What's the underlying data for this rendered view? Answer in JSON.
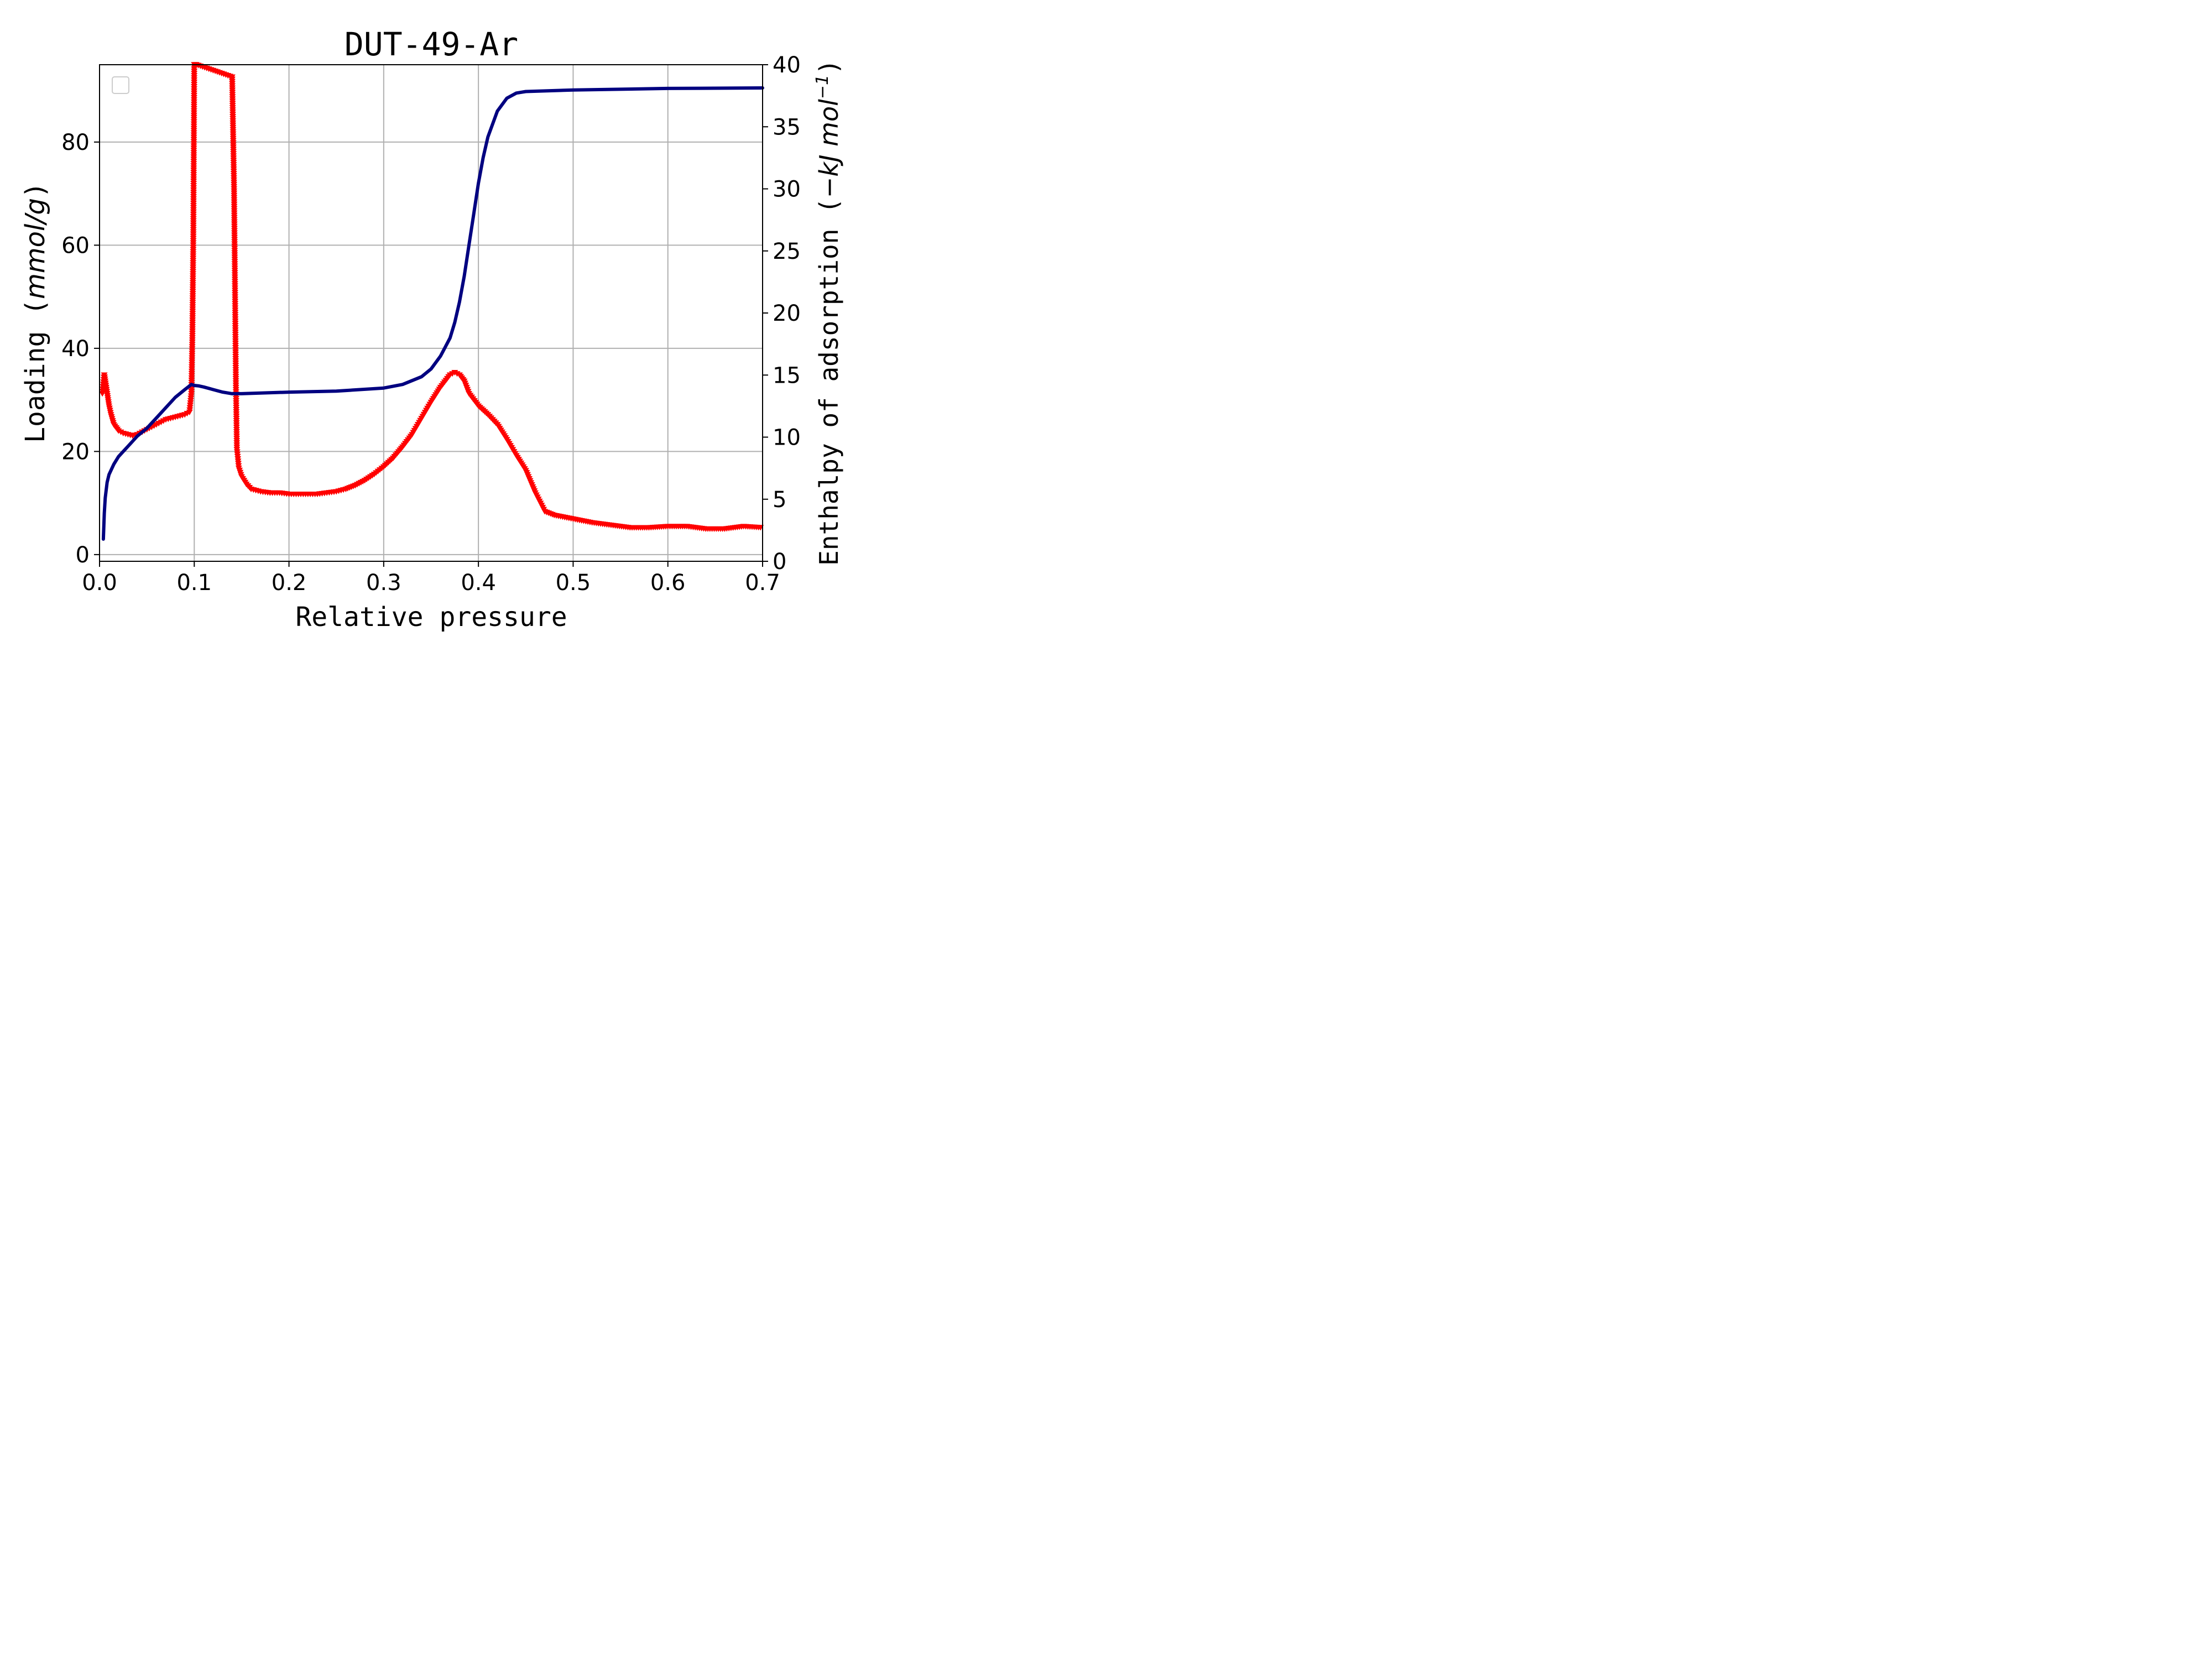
{
  "chart_data": {
    "type": "line",
    "title": "DUT-49-Ar",
    "xlabel": "Relative pressure",
    "ylabel_left": {
      "prefix": "Loading  (",
      "unit": "mmol/g",
      "suffix": ")"
    },
    "ylabel_right": {
      "prefix": "Enthalpy of adsorption (",
      "unit": "−kJ mol",
      "sup": "−1",
      "suffix": ")"
    },
    "xlim": [
      0,
      0.7
    ],
    "ylim_left": [
      -1.3,
      95
    ],
    "ylim_right": [
      0,
      40
    ],
    "x_ticks": [
      "0.0",
      "0.1",
      "0.2",
      "0.3",
      "0.4",
      "0.5",
      "0.6",
      "0.7"
    ],
    "y_left_ticks": [
      "0",
      "20",
      "40",
      "60",
      "80"
    ],
    "y_right_ticks": [
      "0",
      "5",
      "10",
      "15",
      "20",
      "25",
      "30",
      "35",
      "40"
    ],
    "grid": true,
    "legend": {
      "placement": "upper-left",
      "entries": []
    },
    "colors": {
      "loading": "#000080",
      "enthalpy": "#ff0000",
      "grid": "#b0b0b0"
    },
    "series": [
      {
        "axis": "left",
        "style": "line",
        "x": [
          0.004,
          0.005,
          0.006,
          0.008,
          0.01,
          0.015,
          0.02,
          0.03,
          0.04,
          0.05,
          0.06,
          0.07,
          0.08,
          0.09,
          0.097,
          0.1,
          0.105,
          0.11,
          0.12,
          0.13,
          0.14,
          0.15,
          0.2,
          0.25,
          0.3,
          0.32,
          0.34,
          0.35,
          0.36,
          0.37,
          0.375,
          0.38,
          0.385,
          0.39,
          0.395,
          0.4,
          0.405,
          0.41,
          0.42,
          0.43,
          0.44,
          0.45,
          0.5,
          0.6,
          0.7
        ],
        "y": [
          3,
          8,
          11,
          14,
          15.5,
          17.5,
          19,
          21,
          23,
          24.5,
          26.5,
          28.5,
          30.5,
          32,
          33,
          32.8,
          32.7,
          32.5,
          32,
          31.5,
          31.2,
          31.2,
          31.5,
          31.7,
          32.3,
          33,
          34.5,
          36,
          38.5,
          42,
          45,
          49,
          54,
          60,
          66,
          72,
          77,
          81,
          86,
          88.5,
          89.5,
          89.8,
          90.1,
          90.4,
          90.5
        ]
      },
      {
        "axis": "right",
        "style": "triangle-down-markers",
        "x": [
          0.003,
          0.005,
          0.007,
          0.01,
          0.012,
          0.015,
          0.02,
          0.025,
          0.03,
          0.035,
          0.04,
          0.045,
          0.05,
          0.055,
          0.06,
          0.065,
          0.07,
          0.075,
          0.08,
          0.085,
          0.09,
          0.095,
          0.097,
          0.098,
          0.099,
          0.1,
          0.102,
          0.14,
          0.142,
          0.143,
          0.144,
          0.145,
          0.147,
          0.15,
          0.155,
          0.16,
          0.17,
          0.18,
          0.19,
          0.2,
          0.21,
          0.22,
          0.23,
          0.24,
          0.25,
          0.26,
          0.27,
          0.28,
          0.29,
          0.3,
          0.31,
          0.32,
          0.33,
          0.34,
          0.35,
          0.36,
          0.37,
          0.375,
          0.38,
          0.385,
          0.39,
          0.4,
          0.41,
          0.42,
          0.43,
          0.44,
          0.45,
          0.46,
          0.47,
          0.48,
          0.5,
          0.52,
          0.54,
          0.56,
          0.58,
          0.6,
          0.62,
          0.64,
          0.66,
          0.68,
          0.7
        ],
        "y": [
          13.5,
          15,
          14,
          12.5,
          11.8,
          11,
          10.5,
          10.3,
          10.2,
          10.1,
          10.2,
          10.4,
          10.6,
          10.8,
          11.0,
          11.2,
          11.4,
          11.5,
          11.6,
          11.7,
          11.8,
          12.0,
          13.5,
          18,
          26,
          40,
          40,
          39,
          30,
          22,
          14,
          9,
          7.5,
          6.8,
          6.2,
          5.8,
          5.6,
          5.5,
          5.5,
          5.4,
          5.4,
          5.4,
          5.4,
          5.5,
          5.6,
          5.8,
          6.1,
          6.5,
          7.0,
          7.6,
          8.3,
          9.2,
          10.2,
          11.5,
          12.8,
          14.0,
          15.0,
          15.2,
          15.0,
          14.5,
          13.5,
          12.5,
          11.8,
          11.0,
          9.8,
          8.5,
          7.3,
          5.5,
          4.0,
          3.7,
          3.4,
          3.1,
          2.9,
          2.7,
          2.7,
          2.8,
          2.8,
          2.6,
          2.6,
          2.8,
          2.7
        ]
      }
    ]
  }
}
